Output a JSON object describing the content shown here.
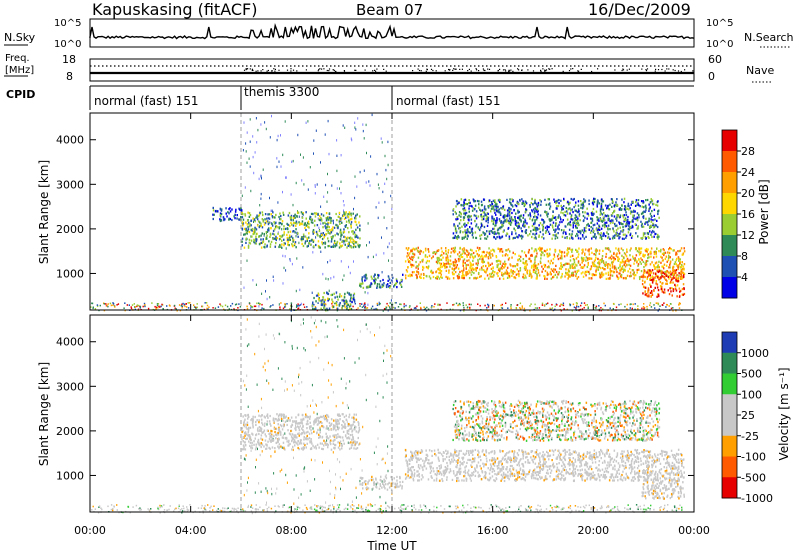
{
  "header": {
    "site": "Kapuskasing (fitACF)",
    "beam": "Beam 07",
    "date": "16/Dec/2009"
  },
  "top_panels": {
    "nsky_label": "N.Sky",
    "nsky_ticks": [
      "10^5",
      "10^0"
    ],
    "nsearch_label": "N.Search",
    "nsearch_ticks": [
      "10^5",
      "10^0"
    ],
    "freq_label_line1": "Freq.",
    "freq_label_line2": "[MHz]",
    "freq_ticks": [
      "18",
      "8"
    ],
    "nave_label": "Nave",
    "nave_ticks": [
      "60",
      "0"
    ],
    "cpid_label": "CPID",
    "cpid_segments": [
      {
        "label": "normal (fast) 151",
        "start_hour": 0,
        "end_hour": 6
      },
      {
        "label": "themis 3300",
        "start_hour": 6,
        "end_hour": 12
      },
      {
        "label": "normal (fast) 151",
        "start_hour": 12,
        "end_hour": 24
      }
    ]
  },
  "chart_data": [
    {
      "type": "heatmap",
      "title": "",
      "xlabel": "Time UT",
      "ylabel": "Slant Range [km]",
      "xlim": [
        0,
        24
      ],
      "ylim": [
        180,
        4600
      ],
      "y_ticks": [
        "4000",
        "3000",
        "2000",
        "1000"
      ],
      "colorbar_label": "Power [dB]",
      "colorbar_ticks": [
        "28",
        "24",
        "20",
        "16",
        "12",
        "8",
        "4"
      ],
      "colorbar_colors": [
        "#e60000",
        "#ff5a00",
        "#ffa000",
        "#ffd700",
        "#9acd32",
        "#2e8b57",
        "#1e50b4",
        "#0000e6"
      ],
      "regions": [
        {
          "t_start": 4.8,
          "t_end": 6.0,
          "range_low": 2200,
          "range_high": 2500,
          "power_db": 4
        },
        {
          "t_start": 6.0,
          "t_end": 10.7,
          "range_low": 1600,
          "range_high": 2400,
          "power_db": 10
        },
        {
          "t_start": 10.7,
          "t_end": 12.4,
          "range_low": 700,
          "range_high": 1000,
          "power_db": 6
        },
        {
          "t_start": 8.8,
          "t_end": 10.5,
          "range_low": 200,
          "range_high": 600,
          "power_db": 8
        },
        {
          "t_start": 12.5,
          "t_end": 23.6,
          "range_low": 900,
          "range_high": 1600,
          "power_db": 18
        },
        {
          "t_start": 14.4,
          "t_end": 22.6,
          "range_low": 1800,
          "range_high": 2700,
          "power_db": 6
        },
        {
          "t_start": 21.9,
          "t_end": 23.6,
          "range_low": 500,
          "range_high": 1100,
          "power_db": 24
        }
      ]
    },
    {
      "type": "heatmap",
      "title": "",
      "xlabel": "Time UT",
      "ylabel": "Slant Range [km]",
      "xlim": [
        0,
        24
      ],
      "ylim": [
        180,
        4600
      ],
      "x_ticks": [
        "00:00",
        "04:00",
        "08:00",
        "12:00",
        "16:00",
        "20:00",
        "00:00"
      ],
      "y_ticks": [
        "4000",
        "3000",
        "2000",
        "1000"
      ],
      "colorbar_label": "Velocity [m s⁻¹]",
      "colorbar_ticks": [
        "1000",
        "500",
        "100",
        "25",
        "-25",
        "-100",
        "-500",
        "-1000"
      ],
      "colorbar_colors": [
        "#1e3cb4",
        "#2e8b57",
        "#32cd32",
        "#c8c8c8",
        "#c8c8c8",
        "#ffa000",
        "#ff5a00",
        "#e60000"
      ],
      "regions": [
        {
          "t_start": 6.0,
          "t_end": 10.7,
          "range_low": 1600,
          "range_high": 2400,
          "velocity": 0
        },
        {
          "t_start": 10.7,
          "t_end": 12.4,
          "range_low": 700,
          "range_high": 1000,
          "velocity": 0
        },
        {
          "t_start": 12.5,
          "t_end": 23.6,
          "range_low": 900,
          "range_high": 1600,
          "velocity": 0
        },
        {
          "t_start": 14.4,
          "t_end": 22.6,
          "range_low": 1800,
          "range_high": 2700,
          "velocity": -100
        },
        {
          "t_start": 21.9,
          "t_end": 23.6,
          "range_low": 500,
          "range_high": 1100,
          "velocity": 0
        }
      ]
    }
  ]
}
